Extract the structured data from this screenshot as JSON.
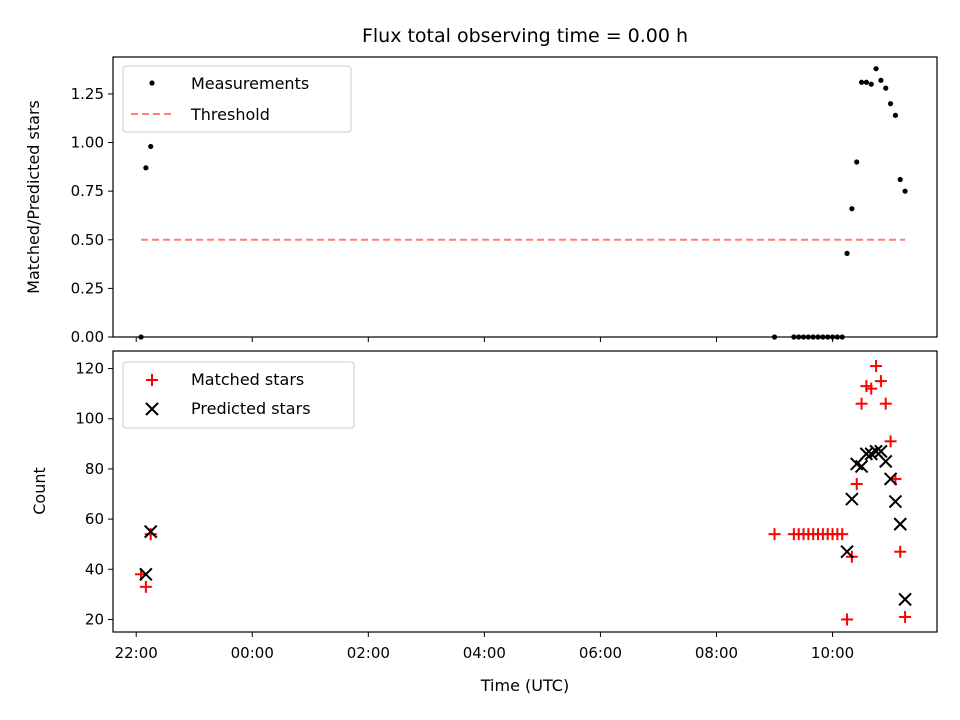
{
  "chart_data": [
    {
      "type": "scatter",
      "title": "Flux total observing time = 0.00 h",
      "xlabel": "",
      "ylabel": "Matched/Predicted stars",
      "xlim": [
        "21:36",
        "11:48"
      ],
      "ylim": [
        0,
        1.44
      ],
      "yticks": [
        0.0,
        0.25,
        0.5,
        0.75,
        1.0,
        1.25
      ],
      "ytick_labels": [
        "0.00",
        "0.25",
        "0.50",
        "0.75",
        "1.00",
        "1.25"
      ],
      "legend": "top-left",
      "series": [
        {
          "name": "Measurements",
          "marker": "dot",
          "color": "#000000",
          "x": [
            "22:05",
            "22:10",
            "22:15",
            "09:00",
            "09:20",
            "09:25",
            "09:30",
            "09:35",
            "09:40",
            "09:45",
            "09:50",
            "09:55",
            "10:00",
            "10:05",
            "10:10",
            "10:15",
            "10:20",
            "10:25",
            "10:30",
            "10:35",
            "10:40",
            "10:45",
            "10:50",
            "10:55",
            "11:00",
            "11:05",
            "11:10",
            "11:15"
          ],
          "y": [
            0.0,
            0.87,
            0.98,
            0.0,
            0.0,
            0.0,
            0.0,
            0.0,
            0.0,
            0.0,
            0.0,
            0.0,
            0.0,
            0.0,
            0.0,
            0.43,
            0.66,
            0.9,
            1.31,
            1.31,
            1.3,
            1.38,
            1.32,
            1.28,
            1.2,
            1.14,
            0.81,
            0.75
          ]
        },
        {
          "name": "Threshold",
          "marker": "dashed-line",
          "color": "#ff7f7f",
          "x": [
            "22:05",
            "11:15"
          ],
          "y": [
            0.5,
            0.5
          ]
        }
      ]
    },
    {
      "type": "scatter",
      "title": "",
      "xlabel": "Time (UTC)",
      "ylabel": "Count",
      "xlim": [
        "21:36",
        "11:48"
      ],
      "ylim": [
        15,
        127
      ],
      "xtick_labels": [
        "22:00",
        "00:00",
        "02:00",
        "04:00",
        "06:00",
        "08:00",
        "10:00"
      ],
      "yticks": [
        20,
        40,
        60,
        80,
        100,
        120
      ],
      "legend": "top-left",
      "series": [
        {
          "name": "Matched stars",
          "marker": "plus",
          "color": "#ff0000",
          "x": [
            "22:05",
            "22:10",
            "22:15",
            "09:00",
            "09:20",
            "09:25",
            "09:30",
            "09:35",
            "09:40",
            "09:45",
            "09:50",
            "09:55",
            "10:00",
            "10:05",
            "10:10",
            "10:15",
            "10:20",
            "10:25",
            "10:30",
            "10:35",
            "10:40",
            "10:45",
            "10:50",
            "10:55",
            "11:00",
            "11:05",
            "11:10",
            "11:15"
          ],
          "y": [
            38,
            33,
            54,
            54,
            54,
            54,
            54,
            54,
            54,
            54,
            54,
            54,
            54,
            54,
            54,
            20,
            45,
            74,
            106,
            113,
            112,
            121,
            115,
            106,
            91,
            76,
            47,
            21
          ]
        },
        {
          "name": "Predicted stars",
          "marker": "x",
          "color": "#000000",
          "x": [
            "22:10",
            "22:15",
            "10:15",
            "10:20",
            "10:25",
            "10:30",
            "10:35",
            "10:40",
            "10:45",
            "10:50",
            "10:55",
            "11:00",
            "11:05",
            "11:10",
            "11:15"
          ],
          "y": [
            38,
            55,
            47,
            68,
            82,
            81,
            86,
            86,
            87,
            87,
            83,
            76,
            67,
            58,
            28
          ]
        }
      ]
    }
  ]
}
